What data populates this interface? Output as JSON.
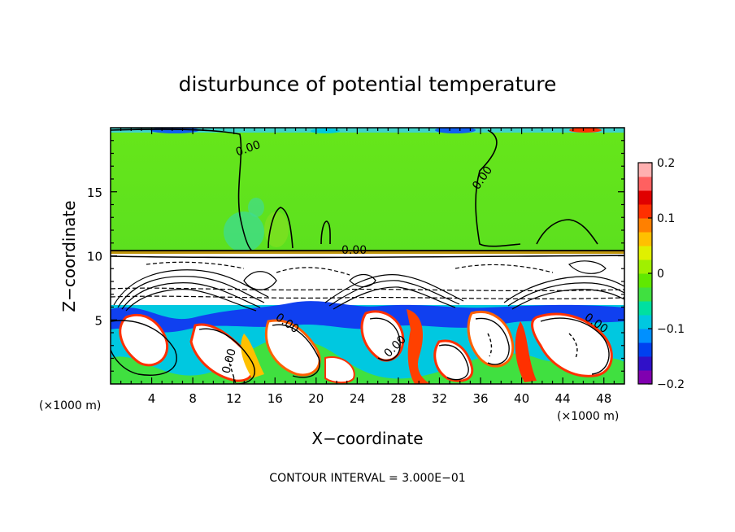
{
  "chart_data": {
    "type": "heatmap",
    "title": "disturbunce of potential temperature",
    "xlabel": "X−coordinate",
    "ylabel": "Z−coordinate",
    "x_unit_left": "(×1000 m)",
    "x_unit_right": "(×1000 m)",
    "xlim": [
      0,
      50
    ],
    "ylim": [
      0,
      20
    ],
    "xticks": [
      4,
      8,
      12,
      16,
      20,
      24,
      28,
      32,
      36,
      40,
      44,
      48
    ],
    "xtick_labels": [
      "4",
      "8",
      "12",
      "16",
      "20",
      "24",
      "28",
      "32",
      "36",
      "40",
      "44",
      "48"
    ],
    "yticks": [
      5,
      10,
      15
    ],
    "ytick_labels": [
      "5",
      "10",
      "15"
    ],
    "colorbar": {
      "range": [
        -0.2,
        0.2
      ],
      "ticks": [
        0.2,
        0.1,
        0,
        -0.1,
        -0.2
      ],
      "tick_labels": [
        "0.2",
        "0.1",
        "0",
        "−0.1",
        "−0.2"
      ],
      "colors": [
        "#8000b0",
        "#3010c8",
        "#0040f0",
        "#0090ff",
        "#00c8e0",
        "#00e0a0",
        "#40e040",
        "#60e800",
        "#a0f000",
        "#e0f000",
        "#ffc000",
        "#ff8000",
        "#ff3000",
        "#e00000",
        "#ff6060",
        "#ffb0b0"
      ]
    },
    "contour_labels": [
      {
        "text": "0.00",
        "x": 14.0,
        "z": 18.2
      },
      {
        "text": "0.00",
        "x": 36.5,
        "z": 16.0
      },
      {
        "text": "0.00",
        "x": 24.0,
        "z": 10.5
      },
      {
        "text": "0.00",
        "x": 17.0,
        "z": 5.0
      },
      {
        "text": "0.00",
        "x": 26.0,
        "z": 3.0
      },
      {
        "text": "0.00",
        "x": 46.0,
        "z": 4.0
      },
      {
        "text": "0.00",
        "x": 12.0,
        "z": 2.0
      }
    ],
    "contour_interval_label": "CONTOUR INTERVAL =  3.000E−01"
  }
}
